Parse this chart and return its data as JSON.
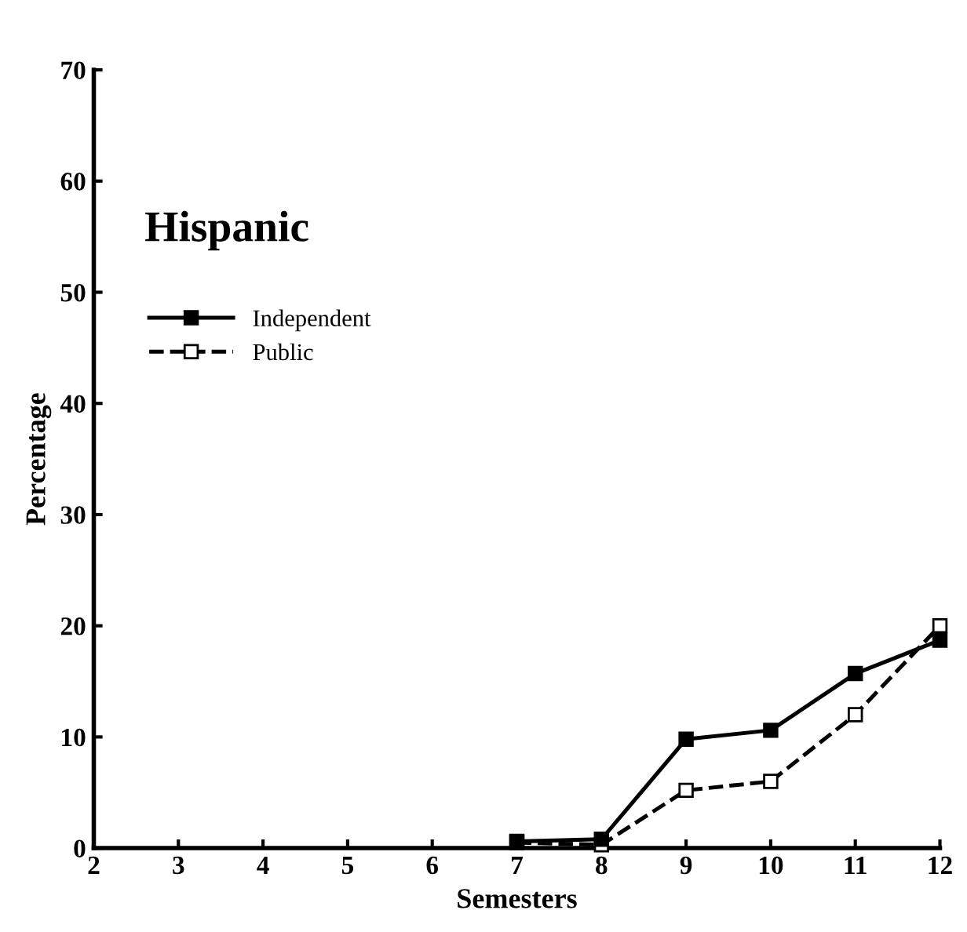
{
  "chart_data": {
    "type": "line",
    "title": "Hispanic",
    "xlabel": "Semesters",
    "ylabel": "Percentage",
    "x": [
      7,
      8,
      9,
      10,
      11,
      12
    ],
    "series": [
      {
        "name": "Independent",
        "color": "#000000",
        "values": [
          0.6,
          0.8,
          9.8,
          10.6,
          15.7,
          18.7
        ],
        "marker": "square",
        "line_style": "solid"
      },
      {
        "name": "Public",
        "color": "#000000",
        "values": [
          0.5,
          0.3,
          5.2,
          6,
          12,
          20
        ],
        "marker": "square",
        "line_style": "dashed"
      }
    ],
    "xlim": [
      2,
      12
    ],
    "xticks": [
      2,
      3,
      4,
      5,
      6,
      7,
      8,
      9,
      10,
      11,
      12
    ],
    "ylim": [
      0,
      70
    ],
    "yticks": [
      0,
      10,
      20,
      30,
      40,
      50,
      60,
      70
    ],
    "grid": false,
    "legend": "top left"
  }
}
